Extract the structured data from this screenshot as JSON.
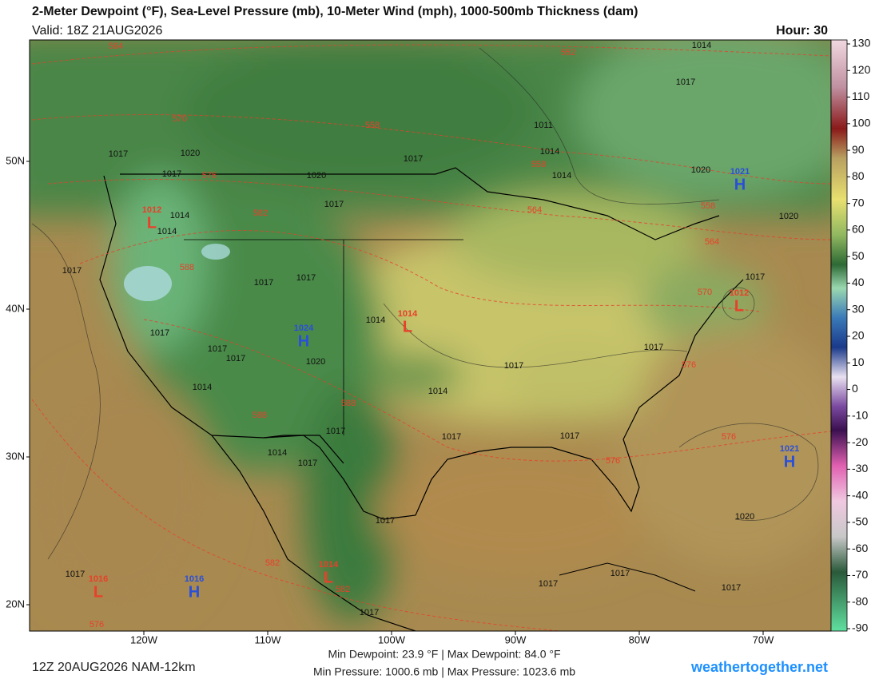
{
  "header": {
    "title": "2-Meter Dewpoint (°F), Sea-Level Pressure (mb), 10-Meter Wind (mph), 1000-500mb Thickness (dam)",
    "valid": "Valid: 18Z 21AUG2026",
    "hour": "Hour: 30"
  },
  "map": {
    "lat_ticks": [
      {
        "value": 50,
        "label": "50N"
      },
      {
        "value": 40,
        "label": "40N"
      },
      {
        "value": 30,
        "label": "30N"
      },
      {
        "value": 20,
        "label": "20N"
      }
    ],
    "lon_ticks": [
      {
        "value": -120,
        "label": "120W"
      },
      {
        "value": -110,
        "label": "110W"
      },
      {
        "value": -100,
        "label": "100W"
      },
      {
        "value": -90,
        "label": "90W"
      },
      {
        "value": -80,
        "label": "80W"
      },
      {
        "value": -70,
        "label": "70W"
      }
    ],
    "pressure_labels": [
      "1014",
      "1017",
      "1011",
      "1014",
      "1017",
      "1014",
      "1020",
      "1020",
      "1017",
      "1017",
      "1020",
      "1017",
      "1020",
      "1017",
      "1014",
      "1014",
      "1017",
      "1017",
      "1017",
      "1014",
      "1017",
      "1017",
      "1017",
      "1020",
      "1014",
      "1014",
      "1017",
      "1017",
      "1017",
      "1017",
      "1014",
      "1017",
      "1017",
      "1017",
      "1020",
      "1017",
      "1017",
      "1017",
      "1017",
      "1017"
    ],
    "thickness_labels": [
      "564",
      "552",
      "570",
      "558",
      "576",
      "558",
      "564",
      "558",
      "582",
      "564",
      "588",
      "570",
      "576",
      "588",
      "588",
      "576",
      "576",
      "582",
      "582",
      "576"
    ],
    "lows": [
      {
        "pressure": "1012",
        "symbol": "L"
      },
      {
        "pressure": "1014",
        "symbol": "L"
      },
      {
        "pressure": "1012",
        "symbol": "L"
      },
      {
        "pressure": "1016",
        "symbol": "L"
      },
      {
        "pressure": "1014",
        "symbol": "L"
      }
    ],
    "highs": [
      {
        "pressure": "1021",
        "symbol": "H"
      },
      {
        "pressure": "1024",
        "symbol": "H"
      },
      {
        "pressure": "1021",
        "symbol": "H"
      },
      {
        "pressure": "1016",
        "symbol": "H"
      }
    ]
  },
  "colorbar": {
    "ticks": [
      130,
      120,
      110,
      100,
      90,
      80,
      70,
      60,
      50,
      40,
      30,
      20,
      10,
      0,
      -10,
      -20,
      -30,
      -40,
      -50,
      -60,
      -70,
      -80,
      -90
    ]
  },
  "footer": {
    "run": "12Z 20AUG2026 NAM-12km",
    "dewpoint_range": "Min Dewpoint:  23.9 °F | Max Dewpoint:  84.0 °F",
    "pressure_range": "Min Pressure: 1000.6 mb | Max Pressure: 1023.6 mb",
    "site": "weathertogether.net"
  }
}
